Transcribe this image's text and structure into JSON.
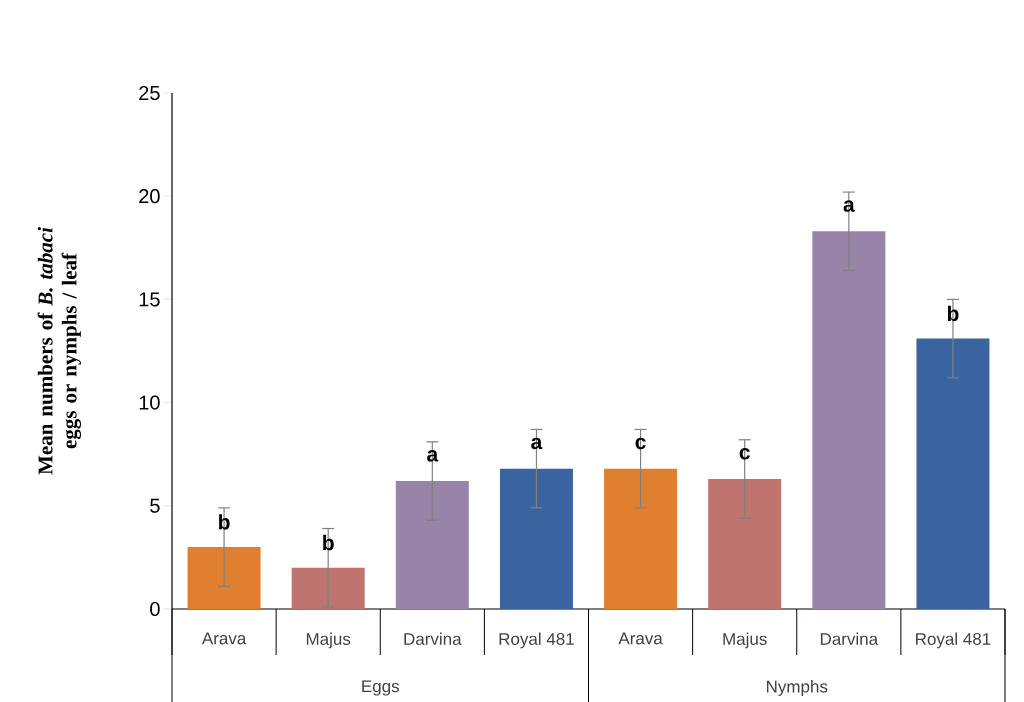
{
  "chart_data": {
    "type": "bar",
    "ylabel": "Mean numbers  of *B. tabaci* eggs or nymphs / leaf",
    "categories": [
      "Arava",
      "Majus",
      "Darvina",
      "Royal 481",
      "Arava",
      "Majus",
      "Darvina",
      "Royal 481"
    ],
    "values": [
      3.0,
      2.0,
      6.2,
      6.8,
      6.8,
      6.3,
      18.3,
      13.1
    ],
    "errors": [
      1.9,
      1.9,
      1.9,
      1.9,
      1.9,
      1.9,
      1.9,
      1.9
    ],
    "value_labels": [
      "b",
      "b",
      "a",
      "a",
      "c",
      "c",
      "a",
      "b"
    ],
    "colors": [
      "#e07f30",
      "#c07470",
      "#9784a8",
      "#3a64a0",
      "#e07f30",
      "#c07470",
      "#9784a8",
      "#3a64a0"
    ],
    "annotations": [
      "Eggs",
      "Nymphs"
    ],
    "ylim": [
      0,
      25
    ],
    "yticks": [
      0,
      5,
      10,
      15,
      20,
      25
    ]
  }
}
